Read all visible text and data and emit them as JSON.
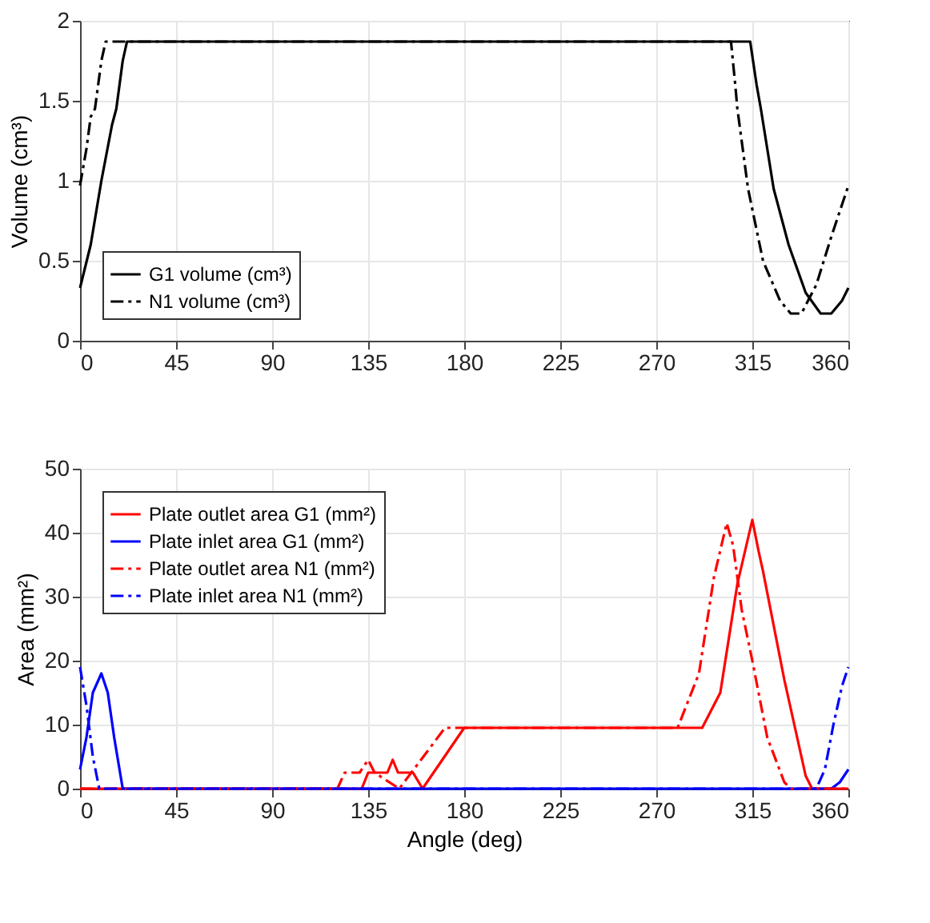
{
  "chart_data": [
    {
      "type": "line",
      "ylabel": "Volume (cm³)",
      "xlim": [
        0,
        360
      ],
      "xticks": [
        0,
        45,
        90,
        135,
        180,
        225,
        270,
        315,
        360
      ],
      "ylim": [
        0,
        2
      ],
      "yticks": [
        0,
        0.5,
        1,
        1.5,
        2
      ],
      "grid": true,
      "legend": "bottom left",
      "series": [
        {
          "name": "G1 volume (cm³)",
          "color": "#000000",
          "line_style": "solid",
          "x": [
            0,
            5,
            10,
            15,
            17,
            20,
            22,
            314,
            317,
            319,
            325,
            332,
            340,
            347,
            352,
            357,
            360
          ],
          "values": [
            0.33,
            0.6,
            1.0,
            1.35,
            1.45,
            1.75,
            1.87,
            1.87,
            1.6,
            1.45,
            0.95,
            0.6,
            0.3,
            0.17,
            0.17,
            0.25,
            0.33
          ]
        },
        {
          "name": "N1 volume (cm³)",
          "color": "#000000",
          "line_style": "dashed",
          "x": [
            0,
            3,
            5,
            7,
            10,
            12,
            22,
            305,
            307,
            308,
            313,
            320,
            328,
            333,
            338,
            345,
            352,
            360
          ],
          "values": [
            0.97,
            1.2,
            1.4,
            1.45,
            1.75,
            1.87,
            1.87,
            1.87,
            1.6,
            1.45,
            0.95,
            0.5,
            0.25,
            0.17,
            0.17,
            0.35,
            0.65,
            0.97
          ]
        }
      ]
    },
    {
      "type": "line",
      "xlabel": "Angle (deg)",
      "ylabel": "Area (mm²)",
      "xlim": [
        0,
        360
      ],
      "xticks": [
        0,
        45,
        90,
        135,
        180,
        225,
        270,
        315,
        360
      ],
      "ylim": [
        0,
        50
      ],
      "yticks": [
        0,
        10,
        20,
        30,
        40,
        50
      ],
      "grid": true,
      "legend": "top left",
      "series": [
        {
          "name": "Plate outlet area G1 (mm²)",
          "color": "#ff0000",
          "line_style": "solid",
          "x": [
            0,
            132,
            135,
            144,
            146.5,
            149,
            156,
            160.5,
            180,
            291.5,
            300,
            308,
            315,
            318,
            320,
            330,
            340,
            343,
            360
          ],
          "values": [
            0,
            0,
            2.5,
            2.5,
            4.5,
            2.5,
            2.5,
            0,
            9.5,
            9.5,
            15,
            32,
            42,
            37,
            34,
            17,
            2,
            0,
            0
          ]
        },
        {
          "name": "Plate inlet area G1 (mm²)",
          "color": "#0000ff",
          "line_style": "solid",
          "x": [
            0,
            3,
            6,
            10,
            13,
            16,
            20,
            352,
            356,
            360
          ],
          "values": [
            3,
            8,
            15,
            18,
            15,
            8,
            0,
            0,
            1,
            3
          ]
        },
        {
          "name": "Plate outlet area N1 (mm²)",
          "color": "#ff0000",
          "line_style": "dashed",
          "x": [
            0,
            120.6,
            124,
            131,
            135,
            138,
            149.6,
            171,
            174,
            280,
            290,
            297,
            303,
            306,
            310,
            315,
            322,
            330,
            333,
            360
          ],
          "values": [
            0,
            0,
            2.5,
            2.5,
            4.5,
            2.5,
            0,
            9.5,
            9.5,
            9.5,
            18,
            33,
            41.5,
            38,
            28,
            20,
            8,
            1,
            0,
            0
          ]
        },
        {
          "name": "Plate inlet area N1 (mm²)",
          "color": "#0000ff",
          "line_style": "dashed",
          "x": [
            0,
            3,
            6,
            9,
            345,
            349,
            353,
            357,
            360
          ],
          "values": [
            19,
            13,
            5,
            0,
            0,
            3,
            10,
            16,
            19
          ]
        }
      ]
    }
  ]
}
